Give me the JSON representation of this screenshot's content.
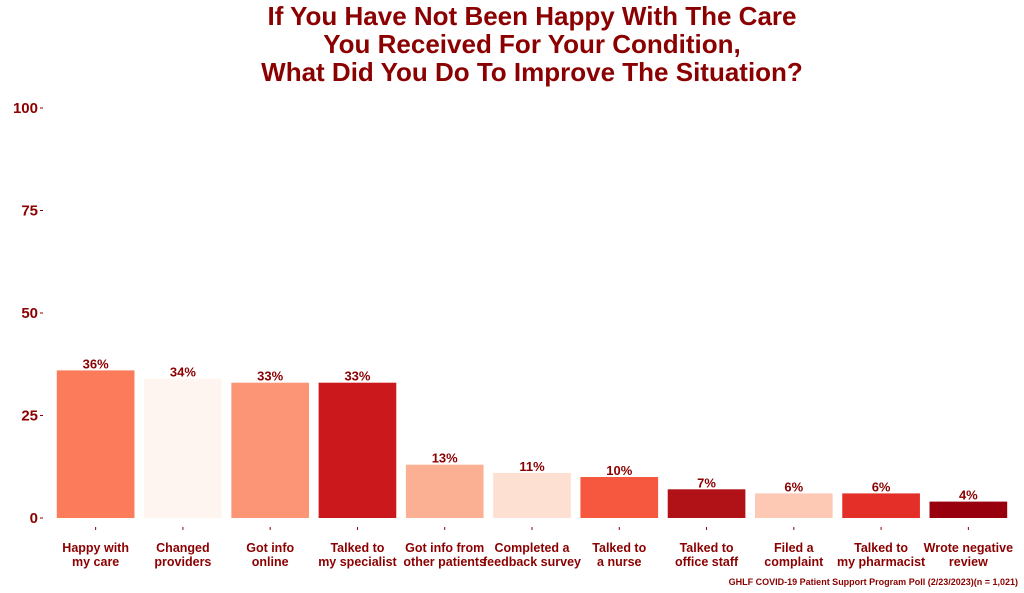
{
  "chart_data": {
    "type": "bar",
    "title": [
      "If You Have Not Been Happy With The Care",
      "You Received For Your Condition,",
      "What Did You Do To Improve The Situation?"
    ],
    "categories": [
      [
        "Happy with",
        "my care"
      ],
      [
        "Changed",
        "providers"
      ],
      [
        "Got info",
        "online"
      ],
      [
        "Talked to",
        "my specialist"
      ],
      [
        "Got info from",
        "other patients"
      ],
      [
        "Completed a",
        "feedback survey"
      ],
      [
        "Talked to",
        "a nurse"
      ],
      [
        "Talked to",
        "office staff"
      ],
      [
        "Filed a",
        "complaint"
      ],
      [
        "Talked to",
        "my pharmacist"
      ],
      [
        "Wrote negative",
        "review"
      ]
    ],
    "values": [
      36,
      34,
      33,
      33,
      13,
      11,
      10,
      7,
      6,
      6,
      4
    ],
    "value_labels": [
      "36%",
      "34%",
      "33%",
      "33%",
      "13%",
      "11%",
      "10%",
      "7%",
      "6%",
      "6%",
      "4%"
    ],
    "bar_colors": [
      "#fb7b5b",
      "#fff5f0",
      "#fc9576",
      "#cb181d",
      "#fcb093",
      "#fee0d2",
      "#f6573f",
      "#b11218",
      "#fdc9b4",
      "#e32f27",
      "#99000d"
    ],
    "yticks": [
      0,
      25,
      50,
      75,
      100
    ],
    "ylim": [
      0,
      100
    ],
    "grid": false,
    "text_color": "#8b0000",
    "source": "GHLF COVID-19 Patient Support Program Poll (2/23/2023)(n = 1,021)"
  }
}
